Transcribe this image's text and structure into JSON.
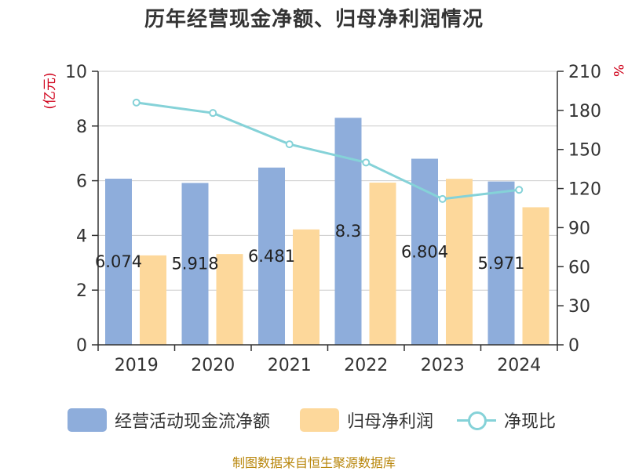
{
  "chart_data": {
    "type": "bar",
    "title": "历年经营现金净额、归母净利润情况",
    "categories": [
      "2019",
      "2020",
      "2021",
      "2022",
      "2023",
      "2024"
    ],
    "series": [
      {
        "name": "经营活动现金流净额",
        "type": "bar",
        "axis": "left",
        "values": [
          6.074,
          5.918,
          6.481,
          8.3,
          6.804,
          5.971
        ],
        "labels": [
          "6.074",
          "5.918",
          "6.481",
          "8.3",
          "6.804",
          "5.971"
        ]
      },
      {
        "name": "归母净利润",
        "type": "bar",
        "axis": "left",
        "values": [
          3.27,
          3.32,
          4.22,
          5.93,
          6.07,
          5.03
        ]
      },
      {
        "name": "净现比",
        "type": "line",
        "axis": "right",
        "values": [
          186,
          178,
          154,
          140,
          112,
          119
        ]
      }
    ],
    "y_left": {
      "label": "(亿元)",
      "min": 0,
      "max": 10,
      "ticks": [
        "0",
        "2",
        "4",
        "6",
        "8",
        "10"
      ]
    },
    "y_right": {
      "label": "%",
      "min": 0,
      "max": 210,
      "ticks": [
        "0",
        "30",
        "60",
        "90",
        "120",
        "150",
        "180",
        "210"
      ]
    },
    "grid": true,
    "legend_position": "bottom",
    "colors": {
      "cash": "#8eaddb",
      "profit": "#fdd89b",
      "ratio": "#85d2d8",
      "axis_label": "#d0021b"
    }
  },
  "source_text": "制图数据来自恒生聚源数据库"
}
